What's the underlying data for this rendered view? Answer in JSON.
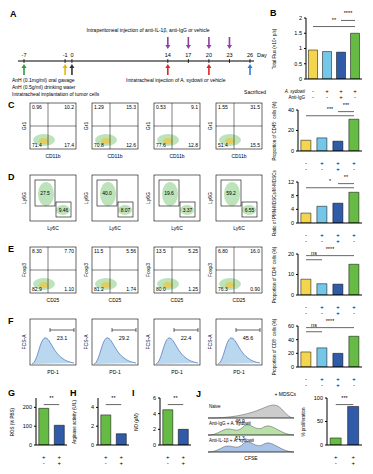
{
  "timeline": {
    "label": "A",
    "days": [
      -7,
      -1,
      0,
      14,
      17,
      20,
      23,
      26
    ],
    "day_unit": "Day",
    "events": [
      {
        "text": "AnH (0.1mg/ml) oral gavage",
        "days": [
          -7
        ],
        "color": "#2e9a3c"
      },
      {
        "text": "AnH (0.5g/ml) drinking water",
        "days": [
          -1
        ],
        "color": "#e6b800"
      },
      {
        "text": "Intratracheal implantation of tumor cells",
        "days": [
          0
        ],
        "color": "#333333"
      },
      {
        "text": "Intraperitoneal injection of anti-IL-1β, anti-IgG or vehicle",
        "days": [
          14,
          17,
          20,
          23
        ],
        "color": "#8e3fa3"
      },
      {
        "text": "Intratracheal injection of A. sydowii or vehicle",
        "days": [
          14,
          20
        ],
        "color": "#d62828"
      },
      {
        "text": "Sacrificed",
        "days": [
          26
        ],
        "color": "#2a7fd4"
      }
    ]
  },
  "flow_panels": [
    {
      "label": "C",
      "type": "quadrant",
      "x_label": "CD11b",
      "y_label": "Gr1",
      "plots": [
        [
          "0.96",
          "10.2",
          "71.4",
          "17.4"
        ],
        [
          "1.29",
          "15.3",
          "70.8",
          "12.6"
        ],
        [
          "0.53",
          "9.1",
          "77.6",
          "12.8"
        ],
        [
          "1.55",
          "31.5",
          "51.4",
          "15.5"
        ]
      ]
    },
    {
      "label": "D",
      "type": "gate",
      "x_label": "Ly6C",
      "y_label": "Ly6G",
      "plots": [
        [
          "27.5",
          "9.46"
        ],
        [
          "40.0",
          "8.07"
        ],
        [
          "19.6",
          "3.37"
        ],
        [
          "59.2",
          "6.55"
        ]
      ]
    },
    {
      "label": "E",
      "type": "quadrant",
      "x_label": "CD25",
      "y_label": "Foxp3",
      "plots": [
        [
          "8.30",
          "7.70",
          "82.9",
          "1.10"
        ],
        [
          "11.5",
          "5.56",
          "81.2",
          "1.74"
        ],
        [
          "13.5",
          "5.25",
          "80.0",
          "1.25"
        ],
        [
          "6.80",
          "16.0",
          "76.3",
          "0.90"
        ]
      ]
    },
    {
      "label": "F",
      "type": "histogram",
      "x_label": "PD-1",
      "y_label": "FCS-A",
      "plots": [
        [
          "23.1"
        ],
        [
          "29.2"
        ],
        [
          "22.4"
        ],
        [
          "45.6"
        ]
      ]
    }
  ],
  "histograms": {
    "label": "J",
    "group_label": "+ MDSCs",
    "x_label": "CFSE",
    "plots": [
      {
        "name": "Naive"
      },
      {
        "name": "Anti-IgG + A. sydowii",
        "value": "46.9"
      },
      {
        "name": "Anti-IL-1β + A. sydowii",
        "value": "51.3"
      }
    ]
  },
  "chart_data": [
    {
      "type": "bar",
      "title": "B",
      "ylabel": "Total Flux (×10⁸ p/s)",
      "values": [
        0.95,
        0.9,
        0.88,
        1.5
      ],
      "colors": [
        "#f3d54e",
        "#74c7e8",
        "#2f5ba8",
        "#66bb45"
      ],
      "ylim": [
        0,
        2
      ],
      "yticks": [
        0,
        0.5,
        1,
        1.5,
        2
      ],
      "condition_names": [
        "A. sydowii",
        "Anti-IgG",
        "Anti-IL-1β"
      ],
      "conditions": [
        [
          "-",
          "+",
          "+",
          "+"
        ],
        [
          "-",
          "-",
          "+",
          "-"
        ],
        [
          "-",
          "-",
          "-",
          "+"
        ]
      ],
      "significance": [
        {
          "from": 0,
          "to": 3,
          "label": "**"
        },
        {
          "from": 2,
          "to": 3,
          "label": "****"
        }
      ]
    },
    {
      "type": "bar",
      "ylabel": "Proportion of CD45⁺ cells (%)",
      "values": [
        10.5,
        12.8,
        9.6,
        31.0
      ],
      "colors": [
        "#f3d54e",
        "#74c7e8",
        "#2f5ba8",
        "#66bb45"
      ],
      "ylim": [
        0,
        40
      ],
      "yticks": [
        0,
        20,
        40
      ],
      "conditions": [
        [
          "-",
          "+",
          "+",
          "+"
        ],
        [
          "-",
          "-",
          "+",
          "-"
        ],
        [
          "-",
          "-",
          "-",
          "+"
        ]
      ],
      "significance": [
        {
          "from": 0,
          "to": 3,
          "label": "***"
        },
        {
          "from": 2,
          "to": 3,
          "label": "***"
        }
      ]
    },
    {
      "type": "bar",
      "ylabel": "Ratio of PMN-MDSCs/M-MDSCs",
      "values": [
        2.9,
        4.9,
        5.8,
        9.0
      ],
      "colors": [
        "#f3d54e",
        "#74c7e8",
        "#2f5ba8",
        "#66bb45"
      ],
      "ylim": [
        0,
        12
      ],
      "yticks": [
        0,
        4,
        8,
        12
      ],
      "conditions": [
        [
          "-",
          "+",
          "+",
          "+"
        ],
        [
          "-",
          "-",
          "+",
          "-"
        ],
        [
          "-",
          "-",
          "-",
          "+"
        ]
      ],
      "significance": [
        {
          "from": 0,
          "to": 3,
          "label": "*"
        },
        {
          "from": 2,
          "to": 3,
          "label": "**"
        }
      ]
    },
    {
      "type": "bar",
      "ylabel": "Proportion of CD4⁺ cells (%)",
      "values": [
        7.7,
        5.5,
        5.3,
        15.0
      ],
      "colors": [
        "#f3d54e",
        "#74c7e8",
        "#2f5ba8",
        "#66bb45"
      ],
      "ylim": [
        0,
        20
      ],
      "yticks": [
        0,
        10,
        20
      ],
      "conditions": [
        [
          "-",
          "+",
          "+",
          "+"
        ],
        [
          "-",
          "-",
          "+",
          "-"
        ],
        [
          "-",
          "-",
          "-",
          "+"
        ]
      ],
      "significance": [
        {
          "from": 0,
          "to": 1,
          "label": "ns"
        },
        {
          "from": 0,
          "to": 3,
          "label": "****"
        }
      ]
    },
    {
      "type": "bar",
      "ylabel": "Proportion of CD8⁺ cells (%)",
      "values": [
        22,
        28,
        20,
        45
      ],
      "colors": [
        "#f3d54e",
        "#74c7e8",
        "#2f5ba8",
        "#66bb45"
      ],
      "ylim": [
        0,
        60
      ],
      "yticks": [
        0,
        20,
        40,
        60
      ],
      "conditions": [
        [
          "-",
          "+",
          "+",
          "+"
        ],
        [
          "-",
          "-",
          "+",
          "-"
        ],
        [
          "-",
          "-",
          "-",
          "+"
        ]
      ],
      "significance": [
        {
          "from": 0,
          "to": 1,
          "label": "ns"
        },
        {
          "from": 0,
          "to": 3,
          "label": "****"
        }
      ]
    },
    {
      "type": "bar",
      "title": "G",
      "ylabel": "ROS (% PBS)",
      "values": [
        195,
        105
      ],
      "colors": [
        "#66bb45",
        "#2f5ba8"
      ],
      "ylim": [
        0,
        250
      ],
      "yticks": [
        0,
        100,
        200
      ],
      "conditions": [
        [
          "+",
          "+"
        ],
        [
          "-",
          "+"
        ]
      ],
      "significance": [
        {
          "from": 0,
          "to": 1,
          "label": "**"
        }
      ]
    },
    {
      "type": "bar",
      "title": "H",
      "ylabel": "Arginase activity (U/L)",
      "values": [
        3.2,
        1.2
      ],
      "colors": [
        "#66bb45",
        "#2f5ba8"
      ],
      "ylim": [
        0,
        5
      ],
      "yticks": [
        0,
        2,
        4
      ],
      "conditions": [
        [
          "+",
          "+"
        ],
        [
          "-",
          "+"
        ]
      ],
      "significance": [
        {
          "from": 0,
          "to": 1,
          "label": "**"
        }
      ]
    },
    {
      "type": "bar",
      "title": "I",
      "ylabel": "NO (μM)",
      "values": [
        4.5,
        2.0
      ],
      "colors": [
        "#66bb45",
        "#2f5ba8"
      ],
      "ylim": [
        0,
        6
      ],
      "yticks": [
        0,
        2,
        4,
        6
      ],
      "conditions": [
        [
          "+",
          "+"
        ],
        [
          "-",
          "+"
        ]
      ],
      "significance": [
        {
          "from": 0,
          "to": 1,
          "label": "**"
        }
      ]
    },
    {
      "type": "bar",
      "ylabel": "% proliferation",
      "values": [
        15,
        82
      ],
      "colors": [
        "#66bb45",
        "#2f5ba8"
      ],
      "ylim": [
        0,
        100
      ],
      "yticks": [
        0,
        50,
        100
      ],
      "conditions": [
        [
          "+",
          "+"
        ],
        [
          "-",
          "+"
        ]
      ],
      "significance": [
        {
          "from": 0,
          "to": 1,
          "label": "***"
        }
      ]
    }
  ]
}
